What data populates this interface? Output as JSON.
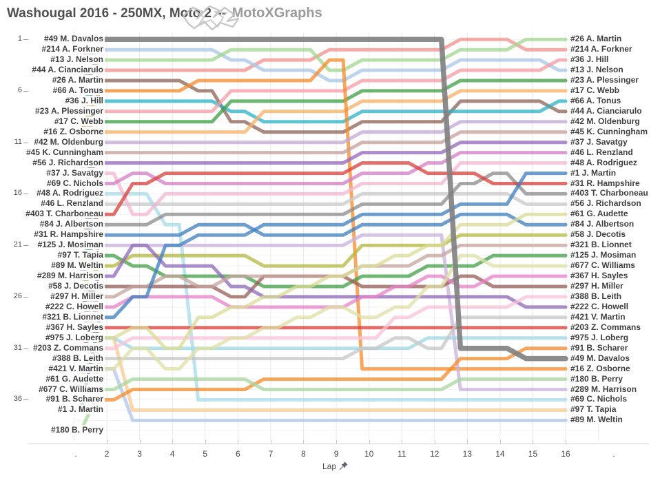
{
  "header": {
    "title": "Washougal 2016 - 250MX, Moto 2",
    "separator": "--",
    "brand": "MotoXGraphs"
  },
  "axis": {
    "x_label": "Lap",
    "x_ticks": [
      2,
      3,
      4,
      5,
      6,
      7,
      8,
      9,
      10,
      11,
      12,
      13,
      14,
      15,
      16
    ],
    "x_edge_left": ".",
    "x_edge_right": ".",
    "y_ticks": [
      1,
      6,
      11,
      16,
      21,
      26,
      31,
      36
    ]
  },
  "colors": {
    "grid_vertical": "#e9e9e9",
    "grid_horizontal": "#f3f3f3",
    "axis_line": "#d2d2d2",
    "title_text": "#4f4f4f",
    "brand_text": "#9b9b9b",
    "label_text": "#3f3f3f",
    "logo_scribble": "#bdbdbd"
  },
  "chart_data": {
    "type": "line",
    "subtype": "bump-chart",
    "title": "Washougal 2016 - 250MX, Moto 2",
    "xlabel": "Lap",
    "ylabel": "Position",
    "x": [
      1,
      2,
      3,
      4,
      5,
      6,
      7,
      8,
      9,
      10,
      11,
      12,
      13,
      14,
      15,
      16
    ],
    "xlim": [
      1,
      16
    ],
    "ylim": [
      1,
      39
    ],
    "y_inverted": true,
    "grid": true,
    "series": [
      {
        "label": "#49 M. Davalos",
        "number": 49,
        "rider": "M. Davalos",
        "color": "#808080",
        "highlight": true,
        "positions": [
          1,
          1,
          1,
          1,
          1,
          1,
          1,
          1,
          1,
          1,
          1,
          1,
          31,
          31,
          32,
          32
        ]
      },
      {
        "label": "#214 A. Forkner",
        "number": 214,
        "rider": "A. Forkner",
        "color": "#f2928c",
        "highlight": false,
        "positions": [
          2,
          4,
          4,
          4,
          4,
          4,
          3,
          3,
          2,
          2,
          2,
          2,
          1,
          1,
          2,
          2
        ]
      },
      {
        "label": "#13 J. Nelson",
        "number": 13,
        "rider": "J. Nelson",
        "color": "#a9c6e6",
        "highlight": false,
        "positions": [
          3,
          2,
          2,
          2,
          2,
          3,
          4,
          4,
          5,
          4,
          4,
          4,
          3,
          3,
          3,
          4
        ]
      },
      {
        "label": "#44 A. Cianciarulo",
        "number": 44,
        "rider": "A. Cianciarulo",
        "color": "#8c6558",
        "highlight": false,
        "positions": [
          4,
          5,
          5,
          5,
          6,
          9,
          10,
          10,
          10,
          9,
          9,
          9,
          7,
          7,
          7,
          8
        ]
      },
      {
        "label": "#26 A. Martin",
        "number": 26,
        "rider": "A. Martin",
        "color": "#a2d68f",
        "highlight": false,
        "positions": [
          5,
          3,
          3,
          3,
          3,
          2,
          2,
          2,
          4,
          3,
          3,
          3,
          2,
          2,
          1,
          1
        ]
      },
      {
        "label": "#66 A. Tonus",
        "number": 66,
        "rider": "A. Tonus",
        "color": "#2db3c7",
        "highlight": false,
        "positions": [
          6,
          7,
          7,
          7,
          7,
          8,
          9,
          9,
          9,
          8,
          8,
          8,
          8,
          8,
          8,
          7
        ]
      },
      {
        "label": "#36 J. Hill",
        "number": 36,
        "rider": "J. Hill",
        "color": "#f59da4",
        "highlight": false,
        "positions": [
          7,
          8,
          8,
          8,
          8,
          6,
          6,
          6,
          6,
          5,
          5,
          5,
          4,
          4,
          4,
          3
        ]
      },
      {
        "label": "#23 A. Plessinger",
        "number": 23,
        "rider": "A. Plessinger",
        "color": "#3f9f46",
        "highlight": false,
        "positions": [
          8,
          9,
          9,
          9,
          9,
          7,
          7,
          7,
          7,
          6,
          6,
          6,
          5,
          5,
          5,
          5
        ]
      },
      {
        "label": "#17 C. Webb",
        "number": 17,
        "rider": "C. Webb",
        "color": "#f6b168",
        "highlight": false,
        "positions": [
          9,
          10,
          10,
          10,
          10,
          10,
          8,
          8,
          8,
          7,
          7,
          7,
          6,
          6,
          6,
          6
        ]
      },
      {
        "label": "#16 Z. Osborne",
        "number": 16,
        "rider": "Z. Osborne",
        "color": "#f68b2c",
        "highlight": false,
        "positions": [
          10,
          6,
          6,
          6,
          5,
          5,
          5,
          5,
          3,
          33,
          33,
          33,
          33,
          33,
          33,
          33
        ]
      },
      {
        "label": "#42 M. Oldenburg",
        "number": 42,
        "rider": "M. Oldenburg",
        "color": "#c2a9d4",
        "highlight": false,
        "positions": [
          11,
          11,
          11,
          11,
          11,
          11,
          11,
          11,
          11,
          10,
          10,
          10,
          9,
          9,
          9,
          9
        ]
      },
      {
        "label": "#45 K. Cunningham",
        "number": 45,
        "rider": "K. Cunningham",
        "color": "#c79f9b",
        "highlight": false,
        "positions": [
          12,
          12,
          12,
          12,
          12,
          12,
          12,
          12,
          12,
          11,
          11,
          11,
          10,
          10,
          10,
          10
        ]
      },
      {
        "label": "#56 J. Richardson",
        "number": 56,
        "rider": "J. Richardson",
        "color": "#c9c9c9",
        "highlight": false,
        "positions": [
          13,
          17,
          17,
          17,
          17,
          17,
          17,
          17,
          17,
          16,
          16,
          16,
          16,
          16,
          17,
          17
        ]
      },
      {
        "label": "#37 J. Savatgy",
        "number": 37,
        "rider": "J. Savatgy",
        "color": "#9467bd",
        "highlight": false,
        "positions": [
          14,
          13,
          13,
          13,
          13,
          13,
          13,
          13,
          13,
          12,
          12,
          12,
          11,
          11,
          11,
          11
        ]
      },
      {
        "label": "#69 C. Nichols",
        "number": 69,
        "rider": "C. Nichols",
        "color": "#a6dbe8",
        "highlight": false,
        "positions": [
          15,
          16,
          16,
          19,
          36,
          36,
          36,
          36,
          36,
          36,
          36,
          36,
          36,
          36,
          36,
          36
        ]
      },
      {
        "label": "#48 A. Rodriguez",
        "number": 48,
        "rider": "A. Rodriguez",
        "color": "#f4b6d0",
        "highlight": false,
        "positions": [
          16,
          14,
          18,
          16,
          16,
          16,
          16,
          16,
          16,
          15,
          15,
          15,
          13,
          13,
          13,
          13
        ]
      },
      {
        "label": "#46 L. Renzland",
        "number": 46,
        "rider": "L. Renzland",
        "color": "#d37fc7",
        "highlight": false,
        "positions": [
          17,
          15,
          14,
          15,
          15,
          15,
          15,
          15,
          15,
          14,
          14,
          13,
          12,
          12,
          12,
          12
        ]
      },
      {
        "label": "#403 T. Charboneau",
        "number": 403,
        "rider": "T. Charboneau",
        "color": "#8c8c8c",
        "highlight": false,
        "positions": [
          18,
          19,
          19,
          18,
          18,
          18,
          18,
          18,
          18,
          17,
          17,
          17,
          15,
          14,
          16,
          16
        ]
      },
      {
        "label": "#84 J. Albertson",
        "number": 84,
        "rider": "J. Albertson",
        "color": "#4080bd",
        "highlight": false,
        "positions": [
          19,
          20,
          20,
          20,
          19,
          19,
          20,
          20,
          20,
          19,
          19,
          19,
          18,
          18,
          19,
          19
        ]
      },
      {
        "label": "#31 R. Hampshire",
        "number": 31,
        "rider": "R. Hampshire",
        "color": "#d8423e",
        "highlight": false,
        "positions": [
          20,
          18,
          15,
          14,
          14,
          14,
          14,
          14,
          14,
          13,
          13,
          14,
          14,
          15,
          15,
          15
        ]
      },
      {
        "label": "#125 J. Mosiman",
        "number": 125,
        "rider": "J. Mosiman",
        "color": "#42a047",
        "highlight": false,
        "positions": [
          21,
          22,
          23,
          24,
          24,
          24,
          25,
          25,
          25,
          24,
          24,
          23,
          23,
          22,
          22,
          22
        ]
      },
      {
        "label": "#97 T. Tapia",
        "number": 97,
        "rider": "T. Tapia",
        "color": "#f9c98f",
        "highlight": false,
        "positions": [
          22,
          30,
          37,
          37,
          37,
          37,
          37,
          37,
          37,
          37,
          37,
          37,
          37,
          37,
          37,
          37
        ]
      },
      {
        "label": "#89 M. Weltin",
        "number": 89,
        "rider": "M. Weltin",
        "color": "#b2c7e8",
        "highlight": false,
        "positions": [
          23,
          33,
          38,
          38,
          38,
          38,
          38,
          38,
          38,
          38,
          38,
          38,
          38,
          38,
          38,
          38
        ]
      },
      {
        "label": "#289 M. Harrison",
        "number": 289,
        "rider": "M. Harrison",
        "color": "#c9b3dc",
        "highlight": false,
        "positions": [
          24,
          21,
          21,
          21,
          21,
          21,
          21,
          21,
          21,
          20,
          20,
          20,
          35,
          35,
          35,
          35
        ]
      },
      {
        "label": "#58 J. Decotis",
        "number": 58,
        "rider": "J. Decotis",
        "color": "#b4b83f",
        "highlight": false,
        "positions": [
          25,
          23,
          22,
          22,
          22,
          22,
          23,
          23,
          23,
          21,
          21,
          21,
          20,
          20,
          20,
          20
        ]
      },
      {
        "label": "#297 H. Miller",
        "number": 297,
        "rider": "H. Miller",
        "color": "#9a6058",
        "highlight": false,
        "positions": [
          26,
          25,
          25,
          25,
          25,
          26,
          24,
          24,
          24,
          25,
          25,
          25,
          24,
          25,
          25,
          25
        ]
      },
      {
        "label": "#222 C. Howell",
        "number": 222,
        "rider": "C. Howell",
        "color": "#8f6bb8",
        "highlight": false,
        "positions": [
          27,
          24,
          21,
          23,
          23,
          25,
          26,
          26,
          26,
          26,
          26,
          26,
          26,
          26,
          27,
          27
        ]
      },
      {
        "label": "#321 B. Lionnet",
        "number": 321,
        "rider": "B. Lionnet",
        "color": "#c7a49e",
        "highlight": false,
        "positions": [
          28,
          26,
          25,
          24,
          25,
          24,
          24,
          24,
          24,
          23,
          23,
          22,
          21,
          21,
          21,
          21
        ]
      },
      {
        "label": "#367 H. Sayles",
        "number": 367,
        "rider": "H. Sayles",
        "color": "#e583c8",
        "highlight": false,
        "positions": [
          29,
          27,
          26,
          26,
          26,
          27,
          27,
          27,
          27,
          26,
          25,
          24,
          25,
          24,
          24,
          24
        ]
      },
      {
        "label": "#975 J. Loberg",
        "number": 975,
        "rider": "J. Loberg",
        "color": "#a0d8e4",
        "highlight": false,
        "positions": [
          30,
          30,
          31,
          31,
          31,
          31,
          31,
          31,
          31,
          31,
          31,
          30,
          30,
          30,
          30,
          30
        ]
      },
      {
        "label": "#203 Z. Commans",
        "number": 203,
        "rider": "Z. Commans",
        "color": "#d8423e",
        "highlight": false,
        "positions": [
          31,
          29,
          29,
          29,
          29,
          29,
          29,
          29,
          29,
          29,
          29,
          29,
          29,
          29,
          29,
          29
        ]
      },
      {
        "label": "#388 B. Leith",
        "number": 388,
        "rider": "B. Leith",
        "color": "#f8c2da",
        "highlight": false,
        "positions": [
          32,
          31,
          30,
          30,
          30,
          30,
          30,
          30,
          30,
          30,
          28,
          27,
          27,
          27,
          26,
          26
        ]
      },
      {
        "label": "#421 V. Martin",
        "number": 421,
        "rider": "V. Martin",
        "color": "#c6c6c6",
        "highlight": false,
        "positions": [
          33,
          32,
          32,
          32,
          32,
          32,
          32,
          32,
          32,
          31,
          30,
          31,
          28,
          28,
          28,
          28
        ]
      },
      {
        "label": "#61 G. Audette",
        "number": 61,
        "rider": "G. Audette",
        "color": "#dadc96",
        "highlight": false,
        "positions": [
          34,
          30,
          29,
          31,
          28,
          27,
          26,
          25,
          24,
          23,
          22,
          21,
          19,
          19,
          18,
          18
        ]
      },
      {
        "label": "#677 C. Williams",
        "number": 677,
        "rider": "C. Williams",
        "color": "#dee0a4",
        "highlight": false,
        "positions": [
          35,
          33,
          31,
          33,
          31,
          30,
          29,
          28,
          27,
          28,
          27,
          25,
          22,
          23,
          23,
          23
        ]
      },
      {
        "label": "#91 B. Scharer",
        "number": 91,
        "rider": "B. Scharer",
        "color": "#f68b2c",
        "highlight": false,
        "positions": [
          36,
          36,
          35,
          35,
          35,
          35,
          34,
          34,
          34,
          34,
          34,
          34,
          32,
          32,
          31,
          31
        ]
      },
      {
        "label": "#1 J. Martin",
        "number": 1,
        "rider": "J. Martin",
        "color": "#4080bd",
        "highlight": false,
        "positions": [
          37,
          28,
          26,
          21,
          20,
          20,
          19,
          19,
          19,
          18,
          18,
          18,
          17,
          17,
          14,
          14
        ]
      },
      {
        "label": "#180 B. Perry",
        "number": 180,
        "rider": "B. Perry",
        "color": "#a8d6a0",
        "highlight": false,
        "positions": [
          39,
          35,
          34,
          34,
          34,
          34,
          35,
          35,
          35,
          35,
          35,
          35,
          34,
          34,
          34,
          34
        ]
      }
    ]
  }
}
